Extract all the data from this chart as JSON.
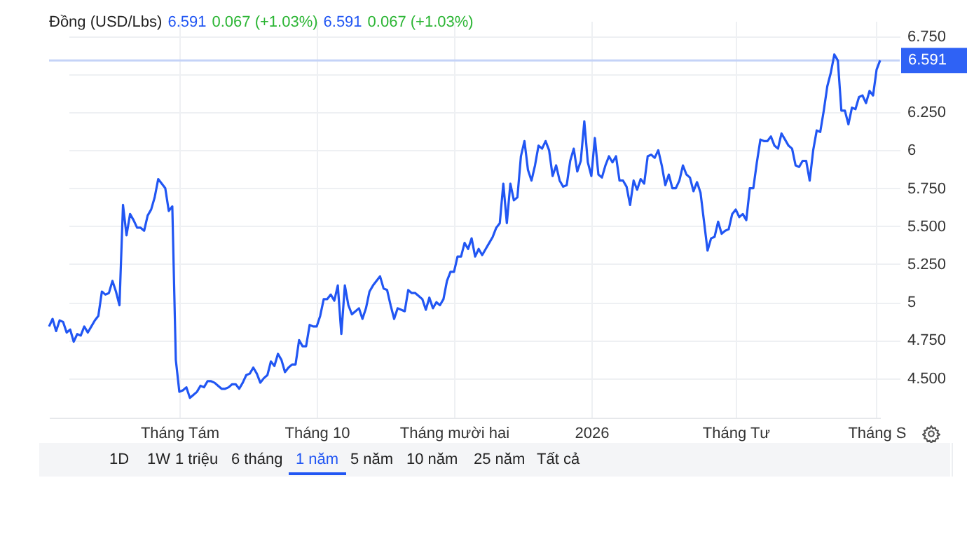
{
  "chart_data": {
    "type": "line",
    "title": "Đồng (USD/Lbs)",
    "annotations": [
      "6.591",
      "0.067 (+1.03%)",
      "6.591",
      "0.067 (+1.03%)",
      "1D",
      "1W",
      "1 triệu",
      "6 tháng",
      "1 năm",
      "5 năm",
      "10 năm",
      "25 năm",
      "Tất cả"
    ],
    "categories": [
      null,
      null,
      null,
      null,
      null,
      null,
      null,
      null,
      null,
      null,
      null,
      null,
      null,
      null,
      null,
      null,
      null,
      null,
      null,
      null,
      null,
      null,
      null,
      null,
      null,
      null,
      null,
      null,
      null,
      null,
      null,
      null,
      null,
      null,
      null,
      null,
      null,
      "Tháng Tám",
      null,
      null,
      null,
      null,
      null,
      null,
      null,
      null,
      null,
      null,
      null,
      null,
      null,
      null,
      null,
      null,
      null,
      null,
      null,
      null,
      null,
      null,
      null,
      null,
      null,
      null,
      null,
      null,
      null,
      null,
      null,
      null,
      null,
      null,
      null,
      null,
      null,
      null,
      "Tháng 10",
      null,
      null,
      null,
      null,
      null,
      null,
      null,
      null,
      null,
      null,
      null,
      null,
      null,
      null,
      null,
      null,
      null,
      null,
      null,
      null,
      null,
      null,
      null,
      null,
      null,
      null,
      null,
      null,
      null,
      null,
      null,
      null,
      null,
      null,
      null,
      null,
      null,
      null,
      "Tháng mười hai",
      null,
      null,
      null,
      null,
      null,
      null,
      null,
      null,
      null,
      null,
      null,
      null,
      null,
      null,
      null,
      null,
      null,
      null,
      null,
      null,
      null,
      null,
      null,
      null,
      null,
      null,
      null,
      null,
      null,
      null,
      null,
      null,
      null,
      null,
      null,
      null,
      null,
      null,
      "2026",
      null,
      null,
      null,
      null,
      null,
      null,
      null,
      null,
      null,
      null,
      null,
      null,
      null,
      null,
      null,
      null,
      null,
      null,
      null,
      null,
      null,
      null,
      null,
      null,
      null,
      null,
      null,
      null,
      null,
      null,
      null,
      null,
      null,
      null,
      null,
      null,
      null,
      null,
      null,
      null,
      "Tháng Tư",
      null,
      null,
      null,
      null,
      null,
      null,
      null,
      null,
      null,
      null,
      null,
      null,
      null,
      null,
      null,
      null,
      null,
      null,
      null,
      null,
      null,
      null,
      null,
      null,
      null,
      null,
      null,
      null,
      null,
      null,
      null,
      null,
      null,
      null,
      null,
      null,
      null,
      null,
      null,
      "Tháng S",
      null
    ],
    "ylim": [
      4.24,
      6.85
    ],
    "yticks": [
      {
        "value": 4.5,
        "label": "4.500"
      },
      {
        "value": 4.75,
        "label": "4.750"
      },
      5,
      {
        "value": 5.25,
        "label": "5.250"
      },
      {
        "value": 5.5,
        "label": "5.500"
      },
      {
        "value": 5.75,
        "label": "5.750"
      },
      6,
      {
        "value": 6.25,
        "label": "6.250"
      },
      {
        "value": 6.5,
        "label": null
      },
      {
        "value": 6.75,
        "label": "6.750"
      }
    ],
    "grid": true,
    "ref_lines": [
      {
        "axis": "y",
        "value": 6.591,
        "label": "6.591",
        "color": "#c5d3f7"
      }
    ],
    "series": [
      {
        "color": "#2156f3",
        "values": [
          4.84,
          4.89,
          4.81,
          4.88,
          4.87,
          4.8,
          4.82,
          4.74,
          4.79,
          4.78,
          4.84,
          4.8,
          4.84,
          4.88,
          4.91,
          5.07,
          5.05,
          5.06,
          5.14,
          5.07,
          4.98,
          5.64,
          5.44,
          5.58,
          5.54,
          5.49,
          5.49,
          5.47,
          5.57,
          5.61,
          5.69,
          5.81,
          5.78,
          5.75,
          5.6,
          5.63,
          4.62,
          4.41,
          4.42,
          4.44,
          4.37,
          4.39,
          4.41,
          4.45,
          4.44,
          4.48,
          4.48,
          4.47,
          4.45,
          4.43,
          4.43,
          4.44,
          4.46,
          4.46,
          4.43,
          4.47,
          4.52,
          4.53,
          4.57,
          4.53,
          4.47,
          4.5,
          4.52,
          4.61,
          4.58,
          4.66,
          4.62,
          4.54,
          4.57,
          4.59,
          4.59,
          4.75,
          4.71,
          4.71,
          4.85,
          4.84,
          4.84,
          4.91,
          5.02,
          5.02,
          5.05,
          5.01,
          5.11,
          4.79,
          5.11,
          4.98,
          4.92,
          4.94,
          4.96,
          4.89,
          4.96,
          5.07,
          5.11,
          5.14,
          5.17,
          5.09,
          5.08,
          4.98,
          4.89,
          4.96,
          4.95,
          4.94,
          5.08,
          5.06,
          5.06,
          5.04,
          5.02,
          4.95,
          5.03,
          4.96,
          5.0,
          4.98,
          5.02,
          5.14,
          5.2,
          5.2,
          5.3,
          5.3,
          5.39,
          5.35,
          5.42,
          5.3,
          5.35,
          5.31,
          5.35,
          5.39,
          5.43,
          5.49,
          5.52,
          5.78,
          5.52,
          5.78,
          5.67,
          5.69,
          5.96,
          6.06,
          5.87,
          5.8,
          5.9,
          6.03,
          6.01,
          6.06,
          6.0,
          5.83,
          5.9,
          5.8,
          5.76,
          5.77,
          5.93,
          6.01,
          5.86,
          5.93,
          6.19,
          5.92,
          5.83,
          6.08,
          5.84,
          5.82,
          5.9,
          5.96,
          5.92,
          5.96,
          5.8,
          5.8,
          5.76,
          5.64,
          5.8,
          5.74,
          5.81,
          5.78,
          5.96,
          5.97,
          5.95,
          6.0,
          5.9,
          5.77,
          5.84,
          5.75,
          5.75,
          5.8,
          5.9,
          5.84,
          5.82,
          5.73,
          5.79,
          5.72,
          5.53,
          5.34,
          5.42,
          5.43,
          5.53,
          5.45,
          5.47,
          5.48,
          5.58,
          5.61,
          5.56,
          5.58,
          5.54,
          5.75,
          5.75,
          5.92,
          6.07,
          6.06,
          6.06,
          6.09,
          6.03,
          6.01,
          6.11,
          6.07,
          6.03,
          6.01,
          5.9,
          5.89,
          5.93,
          5.93,
          5.8,
          6.0,
          6.13,
          6.12,
          6.26,
          6.42,
          6.51,
          6.63,
          6.59,
          6.26,
          6.26,
          6.17,
          6.28,
          6.27,
          6.35,
          6.36,
          6.31,
          6.39,
          6.36,
          6.53,
          6.591
        ]
      }
    ]
  }
}
